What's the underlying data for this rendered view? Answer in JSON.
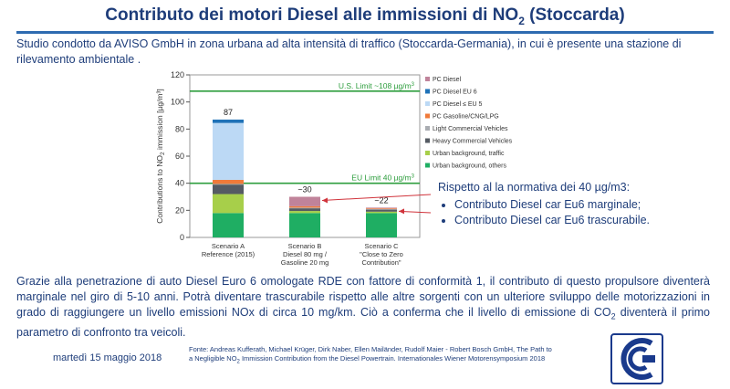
{
  "slide": {
    "title_main": "Contributo dei motori Diesel alle immissioni di NO",
    "title_sub": "2",
    "title_tail": " (Stoccarda)",
    "intro": "Studio condotto da  AVISO GmbH in zona urbana ad alta intensità di traffico (Stoccarda-Germania), in cui è presente una stazione di rilevamento ambientale .",
    "callout_heading": "Rispetto al la normativa dei 40 µg/m3:",
    "callout_items": [
      "Contributo Diesel car Eu6 marginale;",
      "Contributo Diesel car Eu6 trascurabile."
    ],
    "body_1": "Grazie alla penetrazione di auto Diesel Euro 6 omologate RDE con fattore di conformità 1, il contributo di questo propulsore diventerà marginale nel giro di 5-10 anni. Potrà diventare trascurabile rispetto alle altre sorgenti con un ulteriore sviluppo delle motorizzazioni in grado di raggiungere un livello emissioni NOx di circa 10 mg/km. Ciò a conferma che il livello di emissione di CO",
    "body_sub": "2",
    "body_2": " diventerà il primo parametro di confronto tra veicoli.",
    "date": "martedì 15 maggio 2018",
    "source_1": "Fonte: Andreas Kufferath, Michael Krüger, Dirk Naber, Ellen Mailänder, Rudolf Maier - Robert Bosch GmbH, The Path to",
    "source_2a": "a Negligible NO",
    "source_sub": "2",
    "source_2b": " Immission Contribution from the Diesel Powertrain. Internationales Wiener Motorensymposium 2018",
    "logo_icon": "cnr-logo-icon"
  },
  "chart_data": {
    "type": "bar",
    "stacked": true,
    "ylabel_main": "Contributions to NO",
    "ylabel_sub": "2",
    "ylabel_tail": " immission [µg/m³]",
    "ylim": [
      0,
      120
    ],
    "yticks": [
      "0",
      "20",
      "40",
      "60",
      "80",
      "100",
      "120"
    ],
    "categories": [
      [
        "Scenario A",
        "Reference (2015)"
      ],
      [
        "Scenario B",
        "Diesel 80 mg /",
        "Gasoline 20 mg"
      ],
      [
        "Scenario C",
        "\"Close to Zero",
        "Contribution\""
      ]
    ],
    "totals": [
      "87",
      "~30",
      "~22"
    ],
    "series": [
      {
        "name": "Urban background, others",
        "color": "#1fae63",
        "values": [
          18,
          18,
          18
        ]
      },
      {
        "name": "Urban background, traffic",
        "color": "#a7cf4a",
        "values": [
          14,
          1.5,
          1
        ]
      },
      {
        "name": "Heavy Commercial Vehicles",
        "color": "#555b63",
        "values": [
          7,
          2,
          1.5
        ]
      },
      {
        "name": "Light Commercial Vehicles",
        "color": "#a9acb1",
        "values": [
          0.5,
          0.5,
          0.5
        ]
      },
      {
        "name": "PC Gasoline/CNG/LPG",
        "color": "#f07a3a",
        "values": [
          3,
          1,
          0.5
        ]
      },
      {
        "name": "PC Diesel ≤ EU 5",
        "color": "#bcd9f5",
        "values": [
          42,
          0,
          0
        ]
      },
      {
        "name": "PC Diesel EU 6",
        "color": "#1f72b8",
        "values": [
          2.5,
          0,
          0
        ]
      },
      {
        "name": "PC Diesel",
        "color": "#c0839a",
        "values": [
          0,
          7,
          0.5
        ]
      }
    ],
    "legend_order": [
      "PC Diesel",
      "PC Diesel EU 6",
      "PC Diesel ≤ EU 5",
      "PC Gasoline/CNG/LPG",
      "Light Commercial Vehicles",
      "Heavy Commercial Vehicles",
      "Urban background, traffic",
      "Urban background, others"
    ],
    "legend_position": "right",
    "reference_lines": [
      {
        "label_main": "U.S. Limit ~108 µg/m",
        "label_sup": "3",
        "value": 108,
        "color": "#2e9e3e"
      },
      {
        "label_main": "EU Limit 40 µg/m",
        "label_sup": "3",
        "value": 40,
        "color": "#2e9e3e"
      }
    ],
    "annotation_color": "#d0333b"
  }
}
